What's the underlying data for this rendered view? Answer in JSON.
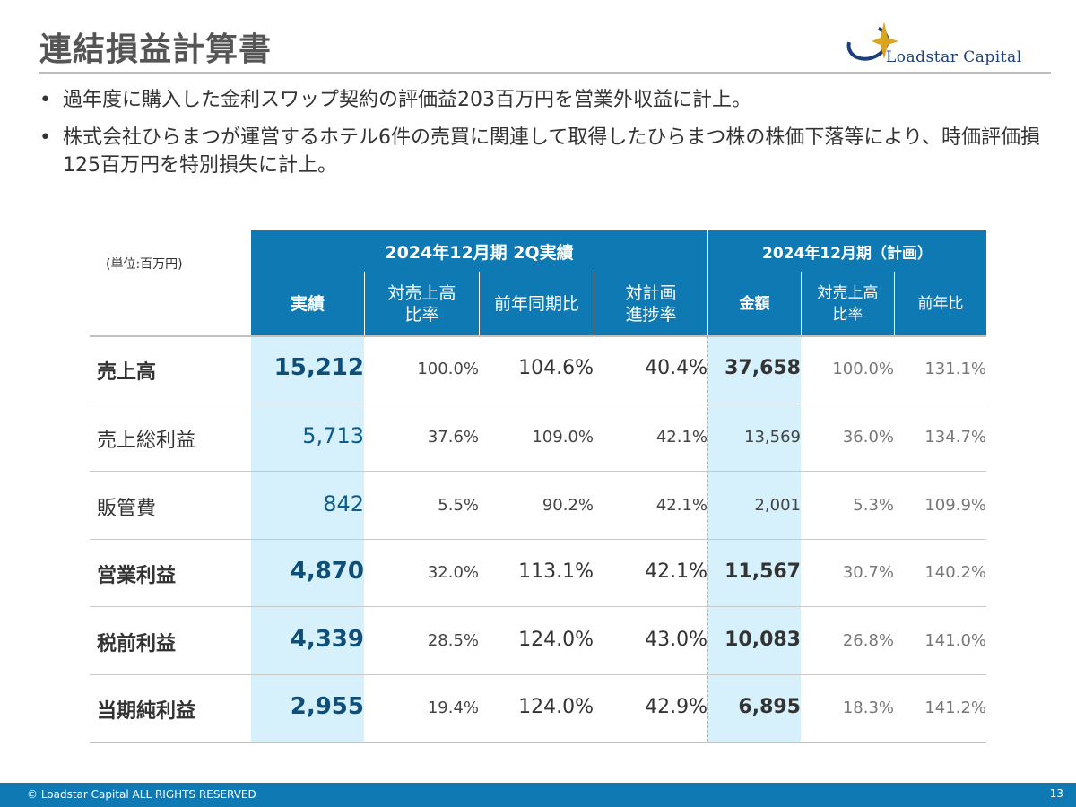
{
  "title": "連結損益計算書",
  "logo": {
    "name": "Loadstar Capital"
  },
  "bullets": [
    "過年度に購入した金利スワップ契約の評価益203百万円を営業外収益に計上。",
    "株式会社ひらまつが運営するホテル6件の売買に関連して取得したひらまつ株の株価下落等により、時価評価損125百万円を特別損失に計上。"
  ],
  "table": {
    "unit": "(単位:百万円)",
    "group_headers": {
      "actual": "2024年12月期 2Q実績",
      "plan": "2024年12月期（計画）"
    },
    "columns": {
      "actual": "実績",
      "ratio_line1": "対売上高",
      "ratio_line2": "比率",
      "yoy": "前年同期比",
      "progress_line1": "対計画",
      "progress_line2": "進捗率",
      "plan_amount": "金額",
      "plan_ratio_line1": "対売上高",
      "plan_ratio_line2": "比率",
      "plan_yoy": "前年比"
    },
    "rows": [
      {
        "label": "売上高",
        "actual": "15,212",
        "ratio": "100.0%",
        "yoy": "104.6%",
        "progress": "40.4%",
        "plan_amount": "37,658",
        "plan_ratio": "100.0%",
        "plan_yoy": "131.1%"
      },
      {
        "label": "売上総利益",
        "actual": "5,713",
        "ratio": "37.6%",
        "yoy": "109.0%",
        "progress": "42.1%",
        "plan_amount": "13,569",
        "plan_ratio": "36.0%",
        "plan_yoy": "134.7%"
      },
      {
        "label": "販管費",
        "actual": "842",
        "ratio": "5.5%",
        "yoy": "90.2%",
        "progress": "42.1%",
        "plan_amount": "2,001",
        "plan_ratio": "5.3%",
        "plan_yoy": "109.9%"
      },
      {
        "label": "営業利益",
        "actual": "4,870",
        "ratio": "32.0%",
        "yoy": "113.1%",
        "progress": "42.1%",
        "plan_amount": "11,567",
        "plan_ratio": "30.7%",
        "plan_yoy": "140.2%"
      },
      {
        "label": "税前利益",
        "actual": "4,339",
        "ratio": "28.5%",
        "yoy": "124.0%",
        "progress": "43.0%",
        "plan_amount": "10,083",
        "plan_ratio": "26.8%",
        "plan_yoy": "141.0%"
      },
      {
        "label": "当期純利益",
        "actual": "2,955",
        "ratio": "19.4%",
        "yoy": "124.0%",
        "progress": "42.9%",
        "plan_amount": "6,895",
        "plan_ratio": "18.3%",
        "plan_yoy": "141.2%"
      }
    ]
  },
  "footer": {
    "copyright": "© Loadstar Capital ALL RIGHTS RESERVED",
    "page": "13"
  },
  "colors": {
    "header_blue": "#0f79b4",
    "highlight": "#d6f1fb",
    "title_gray": "#555555"
  }
}
